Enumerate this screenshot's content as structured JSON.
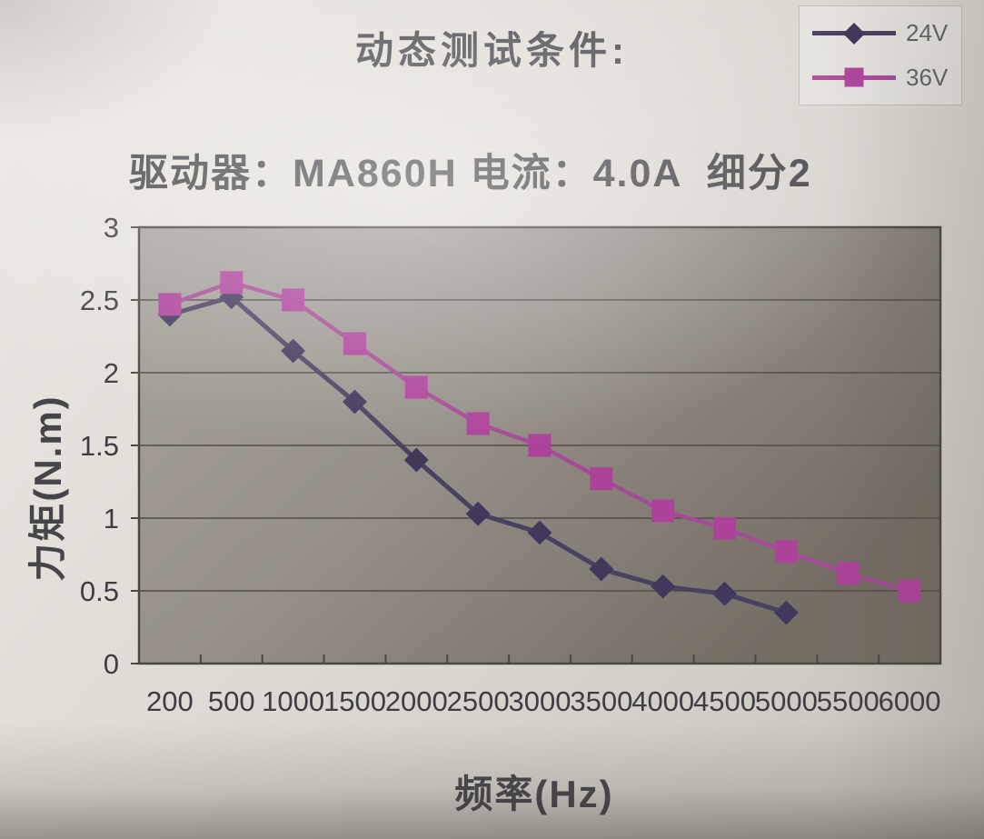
{
  "header": {
    "title": "动态测试条件:",
    "conditions": "驱动器：MA860H 电流：4.0A  细分2"
  },
  "chart_data": {
    "type": "line",
    "title": "动态测试条件:",
    "xlabel": "频率(Hz)",
    "ylabel": "力矩(N.m)",
    "categories": [
      200,
      500,
      1000,
      1500,
      2000,
      2500,
      3000,
      3500,
      4000,
      4500,
      5000,
      5500,
      6000
    ],
    "ylim": [
      0,
      3
    ],
    "yticks": [
      0,
      0.5,
      1,
      1.5,
      2,
      2.5,
      3
    ],
    "grid": true,
    "legend_position": "top-right",
    "plot_background": "#948e87",
    "series": [
      {
        "name": "24V",
        "marker": "diamond",
        "color": "#41385c",
        "line_color": "#4a4162",
        "values": [
          2.4,
          2.52,
          2.15,
          1.8,
          1.4,
          1.03,
          0.9,
          0.65,
          0.53,
          0.48,
          0.35,
          null,
          null
        ]
      },
      {
        "name": "36V",
        "marker": "square",
        "color": "#ad429b",
        "line_color": "#a54b97",
        "values": [
          2.47,
          2.62,
          2.5,
          2.2,
          1.9,
          1.65,
          1.5,
          1.27,
          1.05,
          0.93,
          0.77,
          0.62,
          0.5
        ]
      }
    ]
  }
}
